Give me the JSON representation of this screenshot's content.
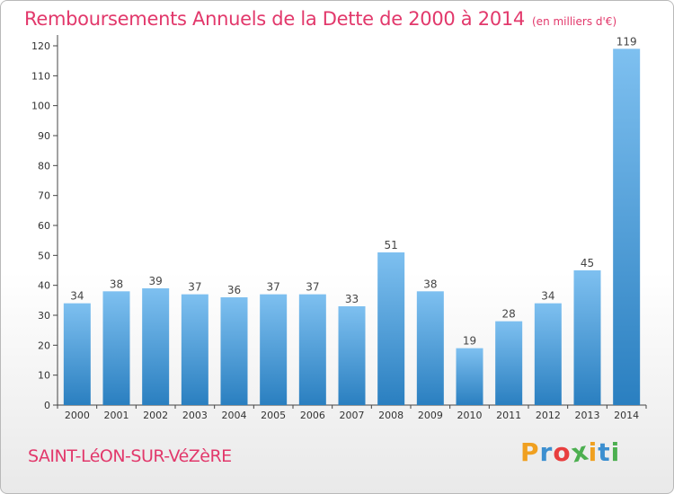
{
  "title": "Remboursements Annuels de la Dette de 2000 à 2014",
  "unit": "(en milliers d'€)",
  "commune": "SAINT-LéON-SUR-VéZèRE",
  "logo": {
    "letters": [
      "P",
      "r",
      "o",
      "x",
      "i",
      "t",
      "i"
    ],
    "colors": [
      "#f0a020",
      "#3c8fd0",
      "#e83e3e",
      "#4caf50",
      "#f0a020",
      "#3c8fd0",
      "#4caf50"
    ]
  },
  "colors": {
    "bar_light": "#7ec0f0",
    "bar_dark": "#2a7fc0",
    "title": "#e2386b"
  },
  "chart_data": {
    "type": "bar",
    "categories": [
      "2000",
      "2001",
      "2002",
      "2003",
      "2004",
      "2005",
      "2006",
      "2007",
      "2008",
      "2009",
      "2010",
      "2011",
      "2012",
      "2013",
      "2014"
    ],
    "values": [
      34,
      38,
      39,
      37,
      36,
      37,
      37,
      33,
      51,
      38,
      19,
      28,
      34,
      45,
      119
    ],
    "ylim": [
      0,
      120
    ],
    "yticks": [
      0,
      10,
      20,
      30,
      40,
      50,
      60,
      70,
      80,
      90,
      100,
      110,
      120
    ],
    "grid": false,
    "legend": "none"
  }
}
